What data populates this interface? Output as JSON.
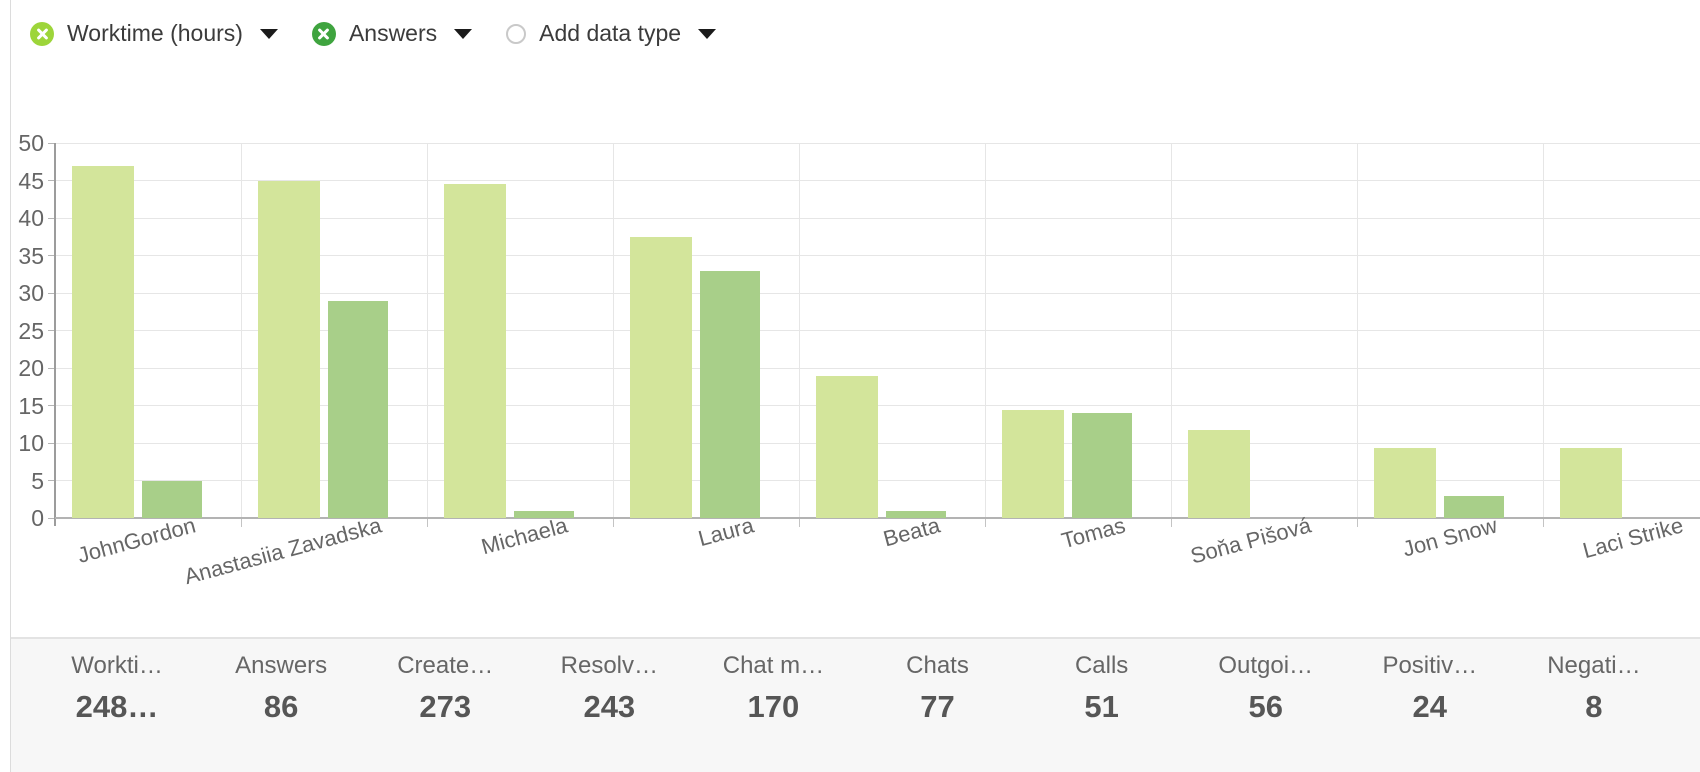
{
  "legend": {
    "items": [
      {
        "label": "Worktime (hours)",
        "dot_color": "#9dd53a",
        "icon": "x-circle",
        "caret": true
      },
      {
        "label": "Answers",
        "dot_color": "#3fa43f",
        "icon": "x-circle",
        "caret": true
      },
      {
        "label": "Add data type",
        "dot_color": "",
        "icon": "empty-circle",
        "caret": true
      }
    ]
  },
  "chart_data": {
    "type": "bar",
    "title": "",
    "xlabel": "",
    "ylabel": "",
    "categories": [
      "JohnGordon",
      "Anastasiia Zavadska",
      "Michaela",
      "Laura",
      "Beata",
      "Tomas",
      "Soňa Pišová",
      "Jon Snow",
      "Laci Strike"
    ],
    "series": [
      {
        "name": "Worktime (hours)",
        "color": "#d3e59b",
        "values": [
          47,
          45,
          44.5,
          37.5,
          19,
          14.4,
          11.7,
          9.3,
          9.3
        ]
      },
      {
        "name": "Answers",
        "color": "#a8cf89",
        "values": [
          5,
          29,
          1,
          33,
          1,
          14,
          0,
          3,
          0
        ]
      }
    ],
    "ylim": [
      0,
      50
    ],
    "ytick_step": 5,
    "grid": true,
    "legend_position": "top-left"
  },
  "stats": {
    "items": [
      {
        "label": "Workti…",
        "value": "248…"
      },
      {
        "label": "Answers",
        "value": "86"
      },
      {
        "label": "Create…",
        "value": "273"
      },
      {
        "label": "Resolv…",
        "value": "243"
      },
      {
        "label": "Chat m…",
        "value": "170"
      },
      {
        "label": "Chats",
        "value": "77"
      },
      {
        "label": "Calls",
        "value": "51"
      },
      {
        "label": "Outgoi…",
        "value": "56"
      },
      {
        "label": "Positiv…",
        "value": "24"
      },
      {
        "label": "Negati…",
        "value": "8"
      }
    ]
  },
  "colors": {
    "bar_light": "#d3e59b",
    "bar_dark": "#a8cf89",
    "dot_worktime": "#9dd53a",
    "dot_answers": "#3fa43f",
    "gridline": "#e6e6e6",
    "axis": "#b3b3b3",
    "stats_background": "#f7f7f7",
    "text_primary": "#3b3b3b",
    "text_secondary": "#666666"
  }
}
